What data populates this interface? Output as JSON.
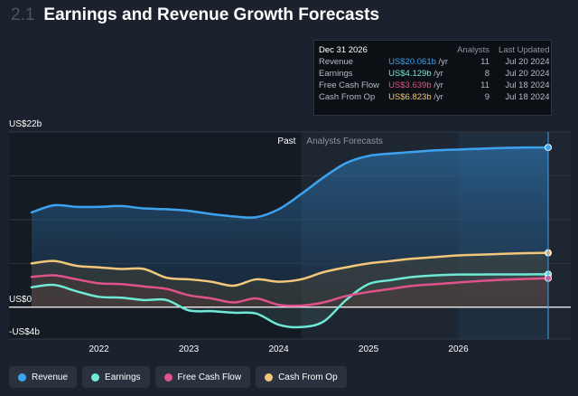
{
  "header": {
    "section_number": "2.1",
    "title": "Earnings and Revenue Growth Forecasts"
  },
  "tooltip": {
    "date": "Dec 31 2026",
    "col_analysts": "Analysts",
    "col_updated": "Last Updated",
    "rows": [
      {
        "label": "Revenue",
        "value": "US$20.061b",
        "unit": " /yr",
        "analysts": "11",
        "updated": "Jul 20 2024",
        "color": "#3ea3ef"
      },
      {
        "label": "Earnings",
        "value": "US$4.129b",
        "unit": " /yr",
        "analysts": "8",
        "updated": "Jul 20 2024",
        "color": "#6fe8d6"
      },
      {
        "label": "Free Cash Flow",
        "value": "US$3.639b",
        "unit": " /yr",
        "analysts": "11",
        "updated": "Jul 18 2024",
        "color": "#e0528a"
      },
      {
        "label": "Cash From Op",
        "value": "US$6.823b",
        "unit": " /yr",
        "analysts": "9",
        "updated": "Jul 18 2024",
        "color": "#f3c77a"
      }
    ]
  },
  "legend": [
    {
      "label": "Revenue",
      "color": "#3ea3ef"
    },
    {
      "label": "Earnings",
      "color": "#6fe8d6"
    },
    {
      "label": "Free Cash Flow",
      "color": "#e0528a"
    },
    {
      "label": "Cash From Op",
      "color": "#f3c77a"
    }
  ],
  "chart_data": {
    "type": "area",
    "title": "Earnings and Revenue Growth Forecasts",
    "y_unit": "US$ billions",
    "ylim": [
      -4,
      22
    ],
    "xlim": [
      2021.25,
      2027.0
    ],
    "x_ticks": [
      "2022",
      "2023",
      "2024",
      "2025",
      "2026"
    ],
    "x_tick_values": [
      2022,
      2023,
      2024,
      2025,
      2026
    ],
    "y_tick_labels": [
      "US$22b",
      "US$0",
      "-US$4b"
    ],
    "y_tick_values": [
      22,
      0,
      -4
    ],
    "past_label": "Past",
    "forecast_label": "Analysts Forecasts",
    "forecast_start": 2024.25,
    "series": [
      {
        "name": "Revenue",
        "color": "#3ea3ef",
        "x": [
          2021.25,
          2021.5,
          2021.75,
          2022.0,
          2022.25,
          2022.5,
          2022.75,
          2023.0,
          2023.25,
          2023.5,
          2023.75,
          2024.0,
          2024.25,
          2024.5,
          2024.75,
          2025.0,
          2025.25,
          2025.5,
          2025.75,
          2026.0,
          2026.25,
          2026.5,
          2026.75,
          2027.0
        ],
        "values": [
          11.9,
          12.8,
          12.6,
          12.6,
          12.7,
          12.4,
          12.3,
          12.1,
          11.7,
          11.4,
          11.3,
          12.3,
          14.2,
          16.3,
          18.1,
          19.0,
          19.3,
          19.5,
          19.7,
          19.8,
          19.9,
          20.0,
          20.05,
          20.061
        ]
      },
      {
        "name": "Earnings",
        "color": "#6fe8d6",
        "x": [
          2021.25,
          2021.5,
          2021.75,
          2022.0,
          2022.25,
          2022.5,
          2022.75,
          2023.0,
          2023.25,
          2023.5,
          2023.75,
          2024.0,
          2024.25,
          2024.5,
          2024.75,
          2025.0,
          2025.25,
          2025.5,
          2025.75,
          2026.0,
          2026.25,
          2026.5,
          2026.75,
          2027.0
        ],
        "values": [
          2.5,
          2.8,
          2.0,
          1.3,
          1.2,
          0.9,
          0.9,
          -0.4,
          -0.5,
          -0.7,
          -0.8,
          -2.2,
          -2.5,
          -1.8,
          0.9,
          2.9,
          3.4,
          3.8,
          4.0,
          4.1,
          4.11,
          4.12,
          4.125,
          4.129
        ]
      },
      {
        "name": "Free Cash Flow",
        "color": "#e0528a",
        "x": [
          2021.25,
          2021.5,
          2021.75,
          2022.0,
          2022.25,
          2022.5,
          2022.75,
          2023.0,
          2023.25,
          2023.5,
          2023.75,
          2024.0,
          2024.25,
          2024.5,
          2024.75,
          2025.0,
          2025.25,
          2025.5,
          2025.75,
          2026.0,
          2026.25,
          2026.5,
          2026.75,
          2027.0
        ],
        "values": [
          3.8,
          4.0,
          3.5,
          3.0,
          2.9,
          2.6,
          2.3,
          1.5,
          1.1,
          0.6,
          1.1,
          0.3,
          0.2,
          0.6,
          1.4,
          1.9,
          2.3,
          2.7,
          2.9,
          3.1,
          3.3,
          3.45,
          3.55,
          3.639
        ]
      },
      {
        "name": "Cash From Op",
        "color": "#f3c77a",
        "x": [
          2021.25,
          2021.5,
          2021.75,
          2022.0,
          2022.25,
          2022.5,
          2022.75,
          2023.0,
          2023.25,
          2023.5,
          2023.75,
          2024.0,
          2024.25,
          2024.5,
          2024.75,
          2025.0,
          2025.25,
          2025.5,
          2025.75,
          2026.0,
          2026.25,
          2026.5,
          2026.75,
          2027.0
        ],
        "values": [
          5.5,
          5.8,
          5.2,
          5.0,
          4.8,
          4.8,
          3.7,
          3.5,
          3.2,
          2.7,
          3.5,
          3.2,
          3.5,
          4.4,
          5.0,
          5.5,
          5.8,
          6.1,
          6.3,
          6.5,
          6.6,
          6.7,
          6.78,
          6.823
        ]
      }
    ]
  }
}
